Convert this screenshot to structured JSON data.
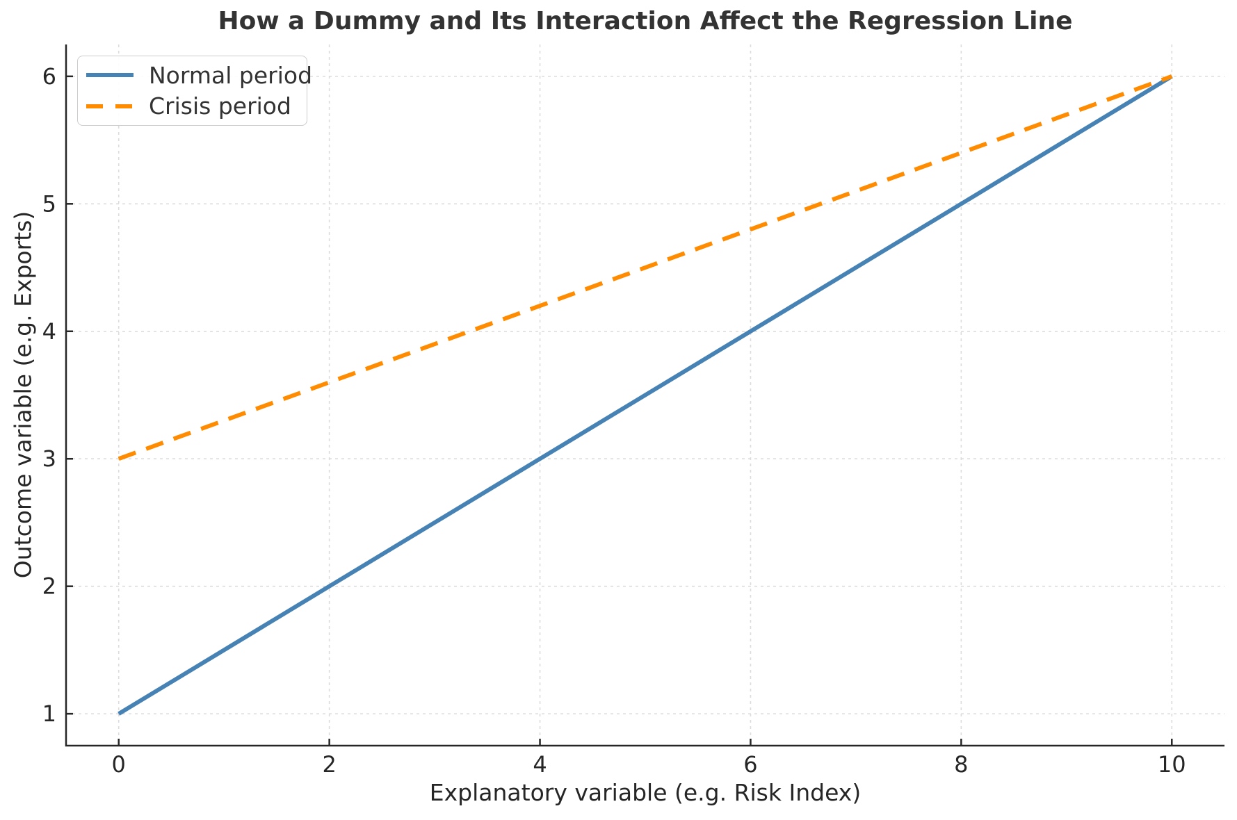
{
  "chart_data": {
    "type": "line",
    "title": "How a Dummy and Its Interaction Affect the Regression Line",
    "xlabel": "Explanatory variable (e.g. Risk Index)",
    "ylabel": "Outcome variable (e.g. Exports)",
    "xlim": [
      -0.5,
      10.5
    ],
    "ylim": [
      0.75,
      6.25
    ],
    "xticks": [
      0,
      2,
      4,
      6,
      8,
      10
    ],
    "yticks": [
      1,
      2,
      3,
      4,
      5,
      6
    ],
    "grid": true,
    "grid_color": "#dcdcdc",
    "axis_color": "#262626",
    "title_color": "#333333",
    "legend": {
      "position": "upper-left",
      "border_color": "#cccccc"
    },
    "series": [
      {
        "name": "Normal period",
        "color": "#4682B4",
        "line_style": "solid",
        "line_width": 6,
        "x": [
          0,
          10
        ],
        "y": [
          1,
          6
        ]
      },
      {
        "name": "Crisis period",
        "color": "#FF8C00",
        "line_style": "dashed",
        "line_width": 6,
        "x": [
          0,
          10
        ],
        "y": [
          3,
          6
        ]
      }
    ]
  }
}
